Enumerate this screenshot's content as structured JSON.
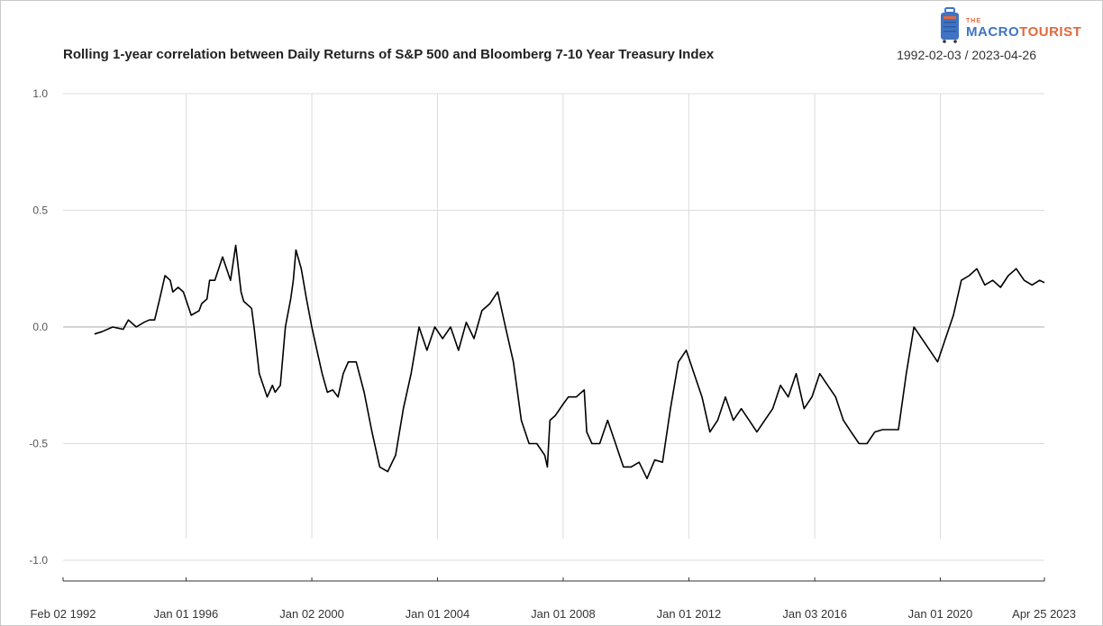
{
  "logo": {
    "the": "THE",
    "macro": "MACRO",
    "tourist": "TOURIST",
    "colors": {
      "blue": "#3f74c4",
      "orange": "#e2683c"
    }
  },
  "chart_data": {
    "type": "line",
    "title": "Rolling 1-year correlation between Daily Returns of S&P 500 and Bloomberg 7-10 Year Treasury Index",
    "date_range": "1992-02-03 / 2023-04-26",
    "xlabel": "",
    "ylabel": "",
    "ylim": [
      -1.0,
      1.0
    ],
    "yticks": [
      {
        "value": 1.0,
        "label": "1.0"
      },
      {
        "value": 0.5,
        "label": "0.5"
      },
      {
        "value": 0.0,
        "label": "0.0"
      },
      {
        "value": -0.5,
        "label": "-0.5"
      },
      {
        "value": -1.0,
        "label": "-1.0"
      }
    ],
    "xlim": [
      "1992-02-02",
      "2023-04-25"
    ],
    "xticks": [
      {
        "date": "1992-02-02",
        "label": "Feb 02 1992"
      },
      {
        "date": "1996-01-01",
        "label": "Jan 01 1996"
      },
      {
        "date": "2000-01-02",
        "label": "Jan 02 2000"
      },
      {
        "date": "2004-01-01",
        "label": "Jan 01 2004"
      },
      {
        "date": "2008-01-01",
        "label": "Jan 01 2008"
      },
      {
        "date": "2012-01-01",
        "label": "Jan 01 2012"
      },
      {
        "date": "2016-01-03",
        "label": "Jan 03 2016"
      },
      {
        "date": "2020-01-01",
        "label": "Jan 01 2020"
      },
      {
        "date": "2023-04-25",
        "label": "Apr 25 2023"
      }
    ],
    "grid": true,
    "legend": "none",
    "line_color": "#000000",
    "series": [
      {
        "x": [
          "1993-02-01",
          "1993-05-01",
          "1993-09-01",
          "1994-01-01",
          "1994-03-01",
          "1994-06-01",
          "1994-09-01",
          "1994-11-01",
          "1995-01-01",
          "1995-03-01",
          "1995-05-01",
          "1995-07-01",
          "1995-08-01",
          "1995-10-01",
          "1995-12-01",
          "1996-03-01",
          "1996-06-01",
          "1996-07-01",
          "1996-09-01",
          "1996-10-01",
          "1996-12-01",
          "1997-03-01",
          "1997-06-01",
          "1997-08-01",
          "1997-10-01",
          "1997-11-01",
          "1998-02-01",
          "1998-03-01",
          "1998-05-01",
          "1998-08-01",
          "1998-10-01",
          "1998-11-01",
          "1999-01-01",
          "1999-03-01",
          "1999-05-01",
          "1999-06-01",
          "1999-07-01",
          "1999-09-01",
          "1999-11-01",
          "2000-01-01",
          "2000-03-01",
          "2000-05-01",
          "2000-07-01",
          "2000-09-01",
          "2000-11-01",
          "2001-01-01",
          "2001-03-01",
          "2001-06-01",
          "2001-09-01",
          "2001-12-01",
          "2002-03-01",
          "2002-06-01",
          "2002-09-01",
          "2002-12-01",
          "2003-03-01",
          "2003-06-01",
          "2003-09-01",
          "2003-12-01",
          "2004-03-01",
          "2004-06-01",
          "2004-09-01",
          "2004-12-01",
          "2005-03-01",
          "2005-06-01",
          "2005-09-01",
          "2005-12-01",
          "2006-03-01",
          "2006-06-01",
          "2006-09-01",
          "2006-12-01",
          "2007-03-01",
          "2007-06-01",
          "2007-07-01",
          "2007-08-01",
          "2007-10-01",
          "2008-01-01",
          "2008-03-01",
          "2008-06-01",
          "2008-09-01",
          "2008-10-01",
          "2008-12-01",
          "2009-03-01",
          "2009-06-01",
          "2009-09-01",
          "2009-12-01",
          "2010-03-01",
          "2010-06-01",
          "2010-09-01",
          "2010-12-01",
          "2011-03-01",
          "2011-06-01",
          "2011-09-01",
          "2011-12-01",
          "2012-03-01",
          "2012-06-01",
          "2012-09-01",
          "2012-12-01",
          "2013-03-01",
          "2013-06-01",
          "2013-09-01",
          "2013-12-01",
          "2014-03-01",
          "2014-06-01",
          "2014-09-01",
          "2014-12-01",
          "2015-03-01",
          "2015-06-01",
          "2015-09-01",
          "2015-12-01",
          "2016-03-01",
          "2016-06-01",
          "2016-09-01",
          "2016-12-01",
          "2017-03-01",
          "2017-06-01",
          "2017-09-01",
          "2017-12-01",
          "2018-03-01",
          "2018-06-01",
          "2018-09-01",
          "2018-12-01",
          "2019-03-01",
          "2019-06-01",
          "2019-09-01",
          "2019-12-01",
          "2020-03-01",
          "2020-06-01",
          "2020-09-01",
          "2020-12-01",
          "2021-03-01",
          "2021-06-01",
          "2021-09-01",
          "2021-12-01",
          "2022-03-01",
          "2022-06-01",
          "2022-09-01",
          "2022-12-01",
          "2023-03-01",
          "2023-04-25"
        ],
        "values": [
          -0.03,
          -0.02,
          0.0,
          -0.01,
          0.03,
          0.0,
          0.02,
          0.03,
          0.03,
          0.12,
          0.22,
          0.2,
          0.15,
          0.17,
          0.15,
          0.05,
          0.07,
          0.1,
          0.12,
          0.2,
          0.2,
          0.3,
          0.2,
          0.35,
          0.15,
          0.11,
          0.08,
          0.0,
          -0.2,
          -0.3,
          -0.25,
          -0.28,
          -0.25,
          0.0,
          0.12,
          0.2,
          0.33,
          0.25,
          0.12,
          0.0,
          -0.1,
          -0.2,
          -0.28,
          -0.27,
          -0.3,
          -0.2,
          -0.15,
          -0.15,
          -0.28,
          -0.45,
          -0.6,
          -0.62,
          -0.55,
          -0.35,
          -0.2,
          0.0,
          -0.1,
          0.0,
          -0.05,
          0.0,
          -0.1,
          0.02,
          -0.05,
          0.07,
          0.1,
          0.15,
          0.0,
          -0.15,
          -0.4,
          -0.5,
          -0.5,
          -0.55,
          -0.6,
          -0.4,
          -0.38,
          -0.33,
          -0.3,
          -0.3,
          -0.27,
          -0.45,
          -0.5,
          -0.5,
          -0.4,
          -0.5,
          -0.6,
          -0.6,
          -0.58,
          -0.65,
          -0.57,
          -0.58,
          -0.35,
          -0.15,
          -0.1,
          -0.2,
          -0.3,
          -0.45,
          -0.4,
          -0.3,
          -0.4,
          -0.35,
          -0.4,
          -0.45,
          -0.4,
          -0.35,
          -0.25,
          -0.3,
          -0.2,
          -0.35,
          -0.3,
          -0.2,
          -0.25,
          -0.3,
          -0.4,
          -0.45,
          -0.5,
          -0.5,
          -0.45,
          -0.44,
          -0.44,
          -0.44,
          -0.2,
          0.0,
          -0.05,
          -0.1,
          -0.15,
          -0.05,
          0.05,
          0.2,
          0.22,
          0.25,
          0.18,
          0.2,
          0.17,
          0.22,
          0.25,
          0.2,
          0.18,
          0.2,
          0.19
        ]
      }
    ]
  }
}
